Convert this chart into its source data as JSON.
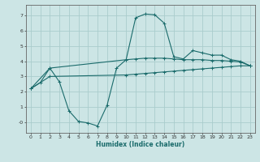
{
  "background_color": "#cce5e5",
  "grid_color": "#aacccc",
  "line_color": "#1a6b6b",
  "xlabel": "Humidex (Indice chaleur)",
  "xlim": [
    -0.5,
    23.5
  ],
  "ylim": [
    -0.7,
    7.7
  ],
  "yticks": [
    0,
    1,
    2,
    3,
    4,
    5,
    6,
    7
  ],
  "ytick_labels": [
    "-0",
    "1",
    "2",
    "3",
    "4",
    "5",
    "6",
    "7"
  ],
  "xticks": [
    0,
    1,
    2,
    3,
    4,
    5,
    6,
    7,
    8,
    9,
    10,
    11,
    12,
    13,
    14,
    15,
    16,
    17,
    18,
    19,
    20,
    21,
    22,
    23
  ],
  "curve1_x": [
    0,
    1,
    2,
    3,
    4,
    5,
    6,
    7,
    8,
    9,
    10,
    11,
    12,
    13,
    14,
    15,
    16,
    17,
    18,
    19,
    20,
    21,
    22,
    23
  ],
  "curve1_y": [
    2.2,
    2.6,
    3.55,
    2.65,
    0.75,
    0.05,
    -0.05,
    -0.25,
    1.1,
    3.55,
    4.1,
    6.85,
    7.1,
    7.05,
    6.5,
    4.3,
    4.15,
    4.7,
    4.55,
    4.4,
    4.4,
    4.1,
    4.0,
    3.7
  ],
  "curve2_x": [
    0,
    2,
    10,
    11,
    12,
    13,
    14,
    15,
    16,
    17,
    18,
    19,
    20,
    21,
    22,
    23
  ],
  "curve2_y": [
    2.2,
    3.55,
    4.1,
    4.15,
    4.2,
    4.2,
    4.2,
    4.15,
    4.1,
    4.1,
    4.1,
    4.05,
    4.05,
    4.0,
    3.95,
    3.7
  ],
  "curve3_x": [
    0,
    2,
    10,
    11,
    12,
    13,
    14,
    15,
    16,
    17,
    18,
    19,
    20,
    21,
    22,
    23
  ],
  "curve3_y": [
    2.2,
    3.0,
    3.1,
    3.15,
    3.2,
    3.25,
    3.3,
    3.35,
    3.4,
    3.45,
    3.5,
    3.55,
    3.6,
    3.65,
    3.7,
    3.7
  ]
}
